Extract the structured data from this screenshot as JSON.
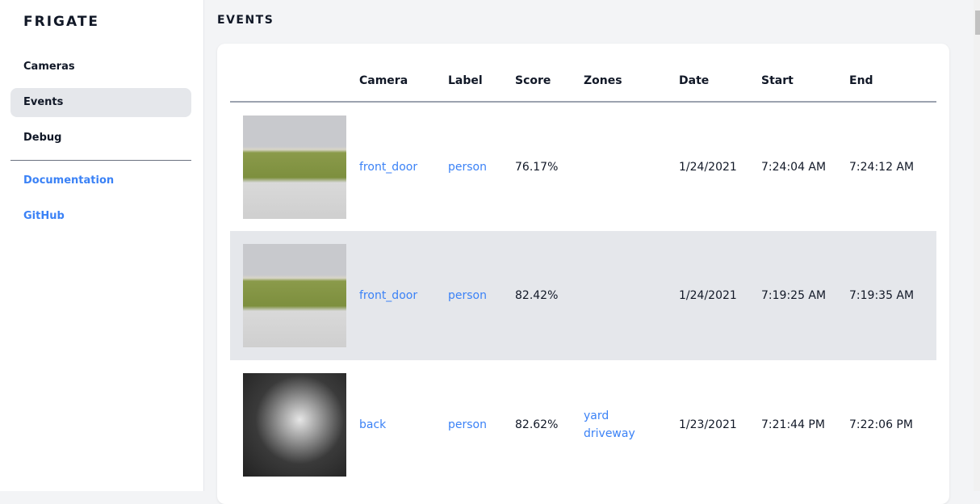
{
  "sidebar": {
    "logo": "FRIGATE",
    "items": [
      {
        "label": "Cameras"
      },
      {
        "label": "Events",
        "active": true
      },
      {
        "label": "Debug"
      }
    ],
    "links": [
      {
        "label": "Documentation"
      },
      {
        "label": "GitHub"
      }
    ]
  },
  "page": {
    "title": "EVENTS"
  },
  "table": {
    "headers": [
      "",
      "Camera",
      "Label",
      "Score",
      "Zones",
      "Date",
      "Start",
      "End"
    ],
    "rows": [
      {
        "camera": "front_door",
        "label": "person",
        "score": "76.17%",
        "zones": [
          "",
          ""
        ],
        "date": "1/24/2021",
        "start": "7:24:04 AM",
        "end": "7:24:12 AM"
      },
      {
        "camera": "front_door",
        "label": "person",
        "score": "82.42%",
        "zones": [
          "",
          ""
        ],
        "date": "1/24/2021",
        "start": "7:19:25 AM",
        "end": "7:19:35 AM"
      },
      {
        "camera": "back",
        "label": "person",
        "score": "82.62%",
        "zones": [
          "yard",
          "driveway"
        ],
        "date": "1/23/2021",
        "start": "7:21:44 PM",
        "end": "7:22:06 PM"
      }
    ]
  }
}
